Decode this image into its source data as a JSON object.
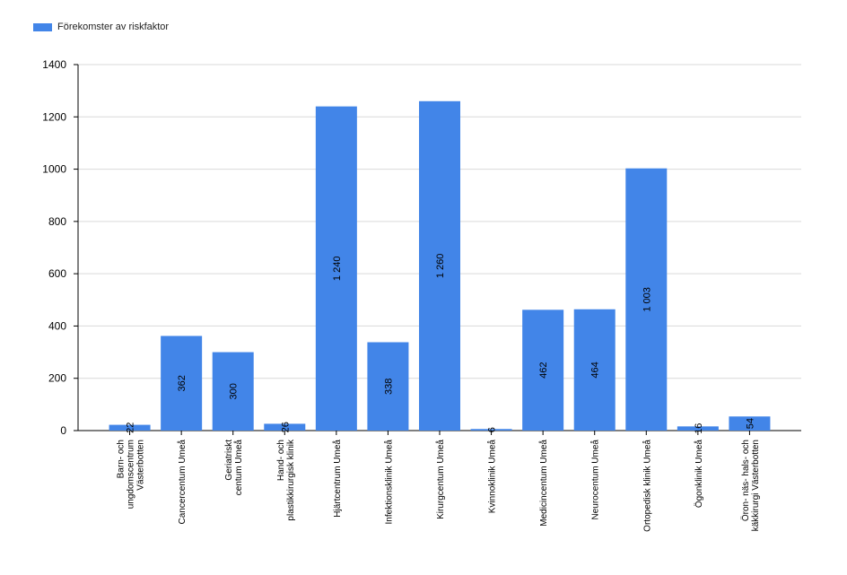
{
  "chart_data": {
    "type": "bar",
    "categories": [
      "Barn- och ungdomscentrum Västerbotten",
      "Cancercentum Umeå",
      "Geriatriskt centum Umeå",
      "Hand- och plastikkirurgisk klinik",
      "Hjärtcentrum Umeå",
      "Infektionsklinik Umeå",
      "Kirurgcentum Umeå",
      "Kvinnoklinik Umeå",
      "Medicincentum Umeå",
      "Neurocentum Umeå",
      "Ortopedisk klinik Umeå",
      "Ögonklinik Umeå",
      "Öron- näs- hals- och käkkirurgi Västerbotten"
    ],
    "category_lines": [
      [
        "Barn- och",
        "ungdomscentrum",
        "Västerbotten"
      ],
      [
        "Cancercentum Umeå"
      ],
      [
        "Geriatriskt",
        "centum Umeå"
      ],
      [
        "Hand- och",
        "plastikkirurgisk klinik"
      ],
      [
        "Hjärtcentrum Umeå"
      ],
      [
        "Infektionsklinik Umeå"
      ],
      [
        "Kirurgcentum Umeå"
      ],
      [
        "Kvinnoklinik Umeå"
      ],
      [
        "Medicincentum Umeå"
      ],
      [
        "Neurocentum Umeå"
      ],
      [
        "Ortopedisk klinik Umeå"
      ],
      [
        "Ögonklinik Umeå"
      ],
      [
        "Öron- näs- hals- och",
        "käkkirurgi Västerbotten"
      ]
    ],
    "series": [
      {
        "name": "Förekomster av riskfaktor",
        "values": [
          22,
          362,
          300,
          26,
          1240,
          338,
          1260,
          6,
          462,
          464,
          1003,
          16,
          54
        ],
        "data_labels": [
          "22",
          "362",
          "300",
          "26",
          "1 240",
          "338",
          "1 260",
          "6",
          "462",
          "464",
          "1 003",
          "16",
          "54"
        ]
      }
    ],
    "ylim": [
      0,
      1400
    ],
    "yticks": [
      0,
      200,
      400,
      600,
      800,
      1000,
      1200,
      1400
    ],
    "grid": true,
    "legend": "top-left",
    "bar_color": "#4285e8"
  }
}
